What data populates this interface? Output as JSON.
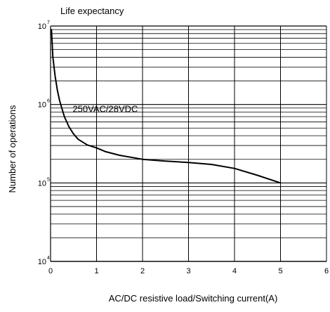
{
  "chart_data": {
    "type": "line",
    "title": "Life expectancy",
    "xlabel": "AC/DC resistive load/Switching current(A)",
    "ylabel": "Number of operations",
    "xscale": "linear",
    "yscale": "log",
    "xlim": [
      0,
      6
    ],
    "ylim": [
      10000,
      10000000
    ],
    "grid": true,
    "x_ticks": [
      "0",
      "1",
      "2",
      "3",
      "4",
      "5",
      "6"
    ],
    "y_ticks": [
      {
        "base": "10",
        "exp": "4",
        "value": 10000
      },
      {
        "base": "10",
        "exp": "5",
        "value": 100000
      },
      {
        "base": "10",
        "exp": "6",
        "value": 1000000
      },
      {
        "base": "10",
        "exp": "7",
        "value": 10000000
      }
    ],
    "series": [
      {
        "name": "250VAC/28VDC",
        "x": [
          0.02,
          0.05,
          0.1,
          0.15,
          0.2,
          0.3,
          0.4,
          0.5,
          0.6,
          0.8,
          1.0,
          1.2,
          1.5,
          2.0,
          2.5,
          3.0,
          3.5,
          4.0,
          4.5,
          5.0
        ],
        "y": [
          9000000,
          4000000,
          2300000,
          1500000,
          1100000,
          700000,
          520000,
          420000,
          360000,
          305000,
          280000,
          250000,
          225000,
          200000,
          190000,
          182000,
          172000,
          153000,
          125000,
          100000
        ]
      }
    ],
    "annotations": [
      {
        "text": "250VAC/28VDC",
        "x": 0.48,
        "y": 800000
      }
    ]
  }
}
